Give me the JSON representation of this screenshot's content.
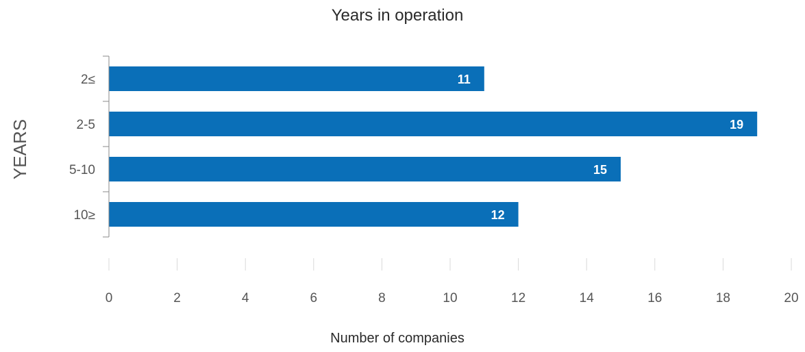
{
  "chart_data": {
    "type": "bar",
    "orientation": "horizontal",
    "title": "Years in operation",
    "xlabel": "Number of companies",
    "ylabel": "YEARS",
    "categories": [
      "2≤",
      "2-5",
      "5-10",
      "10≥"
    ],
    "values": [
      11,
      19,
      15,
      12
    ],
    "data_labels": [
      "11",
      "19",
      "15",
      "12"
    ],
    "xlim": [
      0,
      20
    ],
    "x_ticks": [
      0,
      2,
      4,
      6,
      8,
      10,
      12,
      14,
      16,
      18,
      20
    ],
    "x_tick_labels": [
      "0",
      "2",
      "4",
      "6",
      "8",
      "10",
      "12",
      "14",
      "16",
      "18",
      "20"
    ],
    "grid": false,
    "legend": "none",
    "bar_color": "#0a6fb8",
    "data_label_color": "#ffffff"
  }
}
